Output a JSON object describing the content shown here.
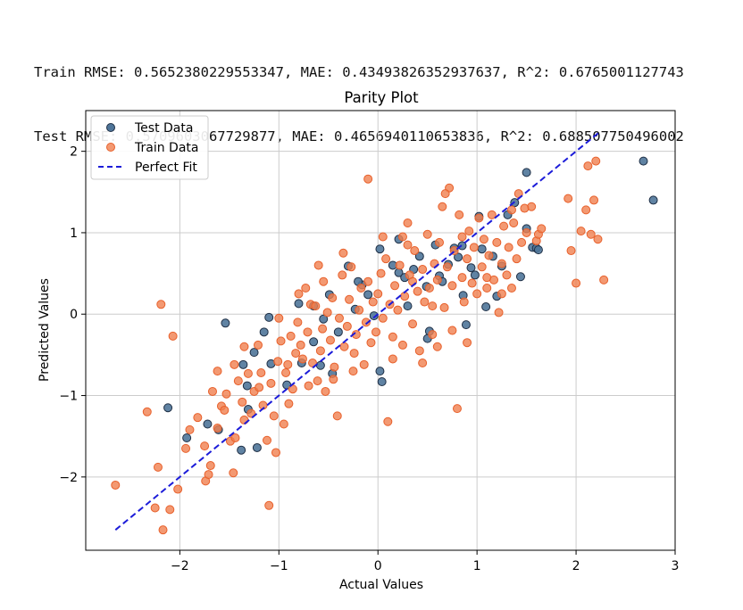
{
  "metrics": {
    "train_line": "Train RMSE: 0.5652380229553347, MAE: 0.43493826352937637, R^2: 0.6765001127743",
    "test_line": "Test RMSE: 0.5709603067729877, MAE: 0.4656940110653836, R^2: 0.688507750496002"
  },
  "colors": {
    "train_fill": "#f07f4f",
    "train_edge": "#e8602b",
    "test_fill": "#4f7599",
    "test_edge": "#1f2f45",
    "perfect_fit": "#1c1cd9",
    "grid": "#cccccc"
  },
  "chart_data": {
    "type": "scatter",
    "title": "Parity Plot",
    "xlabel": "Actual Values",
    "ylabel": "Predicted Values",
    "xlim": [
      -2.95,
      3.0
    ],
    "ylim": [
      -2.9,
      2.5
    ],
    "xticks": [
      -2,
      -1,
      0,
      1,
      2,
      3
    ],
    "yticks": [
      -2,
      -1,
      0,
      1,
      2
    ],
    "xtick_labels": [
      "−2",
      "−1",
      "0",
      "1",
      "2",
      "3"
    ],
    "ytick_labels": [
      "−2",
      "−1",
      "0",
      "1",
      "2"
    ],
    "grid": true,
    "legend_position": "top-left",
    "legend": [
      "Test Data",
      "Train Data",
      "Perfect Fit"
    ],
    "series": [
      {
        "name": "Test Data",
        "kind": "scatter",
        "points": [
          [
            -2.12,
            -1.15
          ],
          [
            -1.93,
            -1.52
          ],
          [
            -1.72,
            -1.35
          ],
          [
            -1.61,
            -1.42
          ],
          [
            -1.38,
            -1.67
          ],
          [
            -1.22,
            -1.64
          ],
          [
            -1.32,
            -0.88
          ],
          [
            -1.36,
            -0.62
          ],
          [
            -1.15,
            -0.22
          ],
          [
            -1.1,
            -0.04
          ],
          [
            -1.54,
            -0.11
          ],
          [
            -1.31,
            -1.17
          ],
          [
            -1.25,
            -0.47
          ],
          [
            -1.08,
            -0.61
          ],
          [
            -0.92,
            -0.87
          ],
          [
            -0.8,
            0.13
          ],
          [
            -0.77,
            -0.6
          ],
          [
            -0.65,
            -0.34
          ],
          [
            -0.58,
            -0.63
          ],
          [
            -0.55,
            -0.06
          ],
          [
            -0.49,
            0.24
          ],
          [
            -0.46,
            -0.73
          ],
          [
            -0.4,
            -0.22
          ],
          [
            -0.3,
            0.59
          ],
          [
            -0.23,
            0.06
          ],
          [
            -0.16,
            0.36
          ],
          [
            -0.1,
            0.24
          ],
          [
            -0.04,
            -0.02
          ],
          [
            0.02,
            0.8
          ],
          [
            0.04,
            -0.83
          ],
          [
            0.02,
            -0.7
          ],
          [
            0.21,
            0.92
          ],
          [
            0.21,
            0.51
          ],
          [
            0.27,
            0.45
          ],
          [
            0.36,
            0.55
          ],
          [
            0.42,
            0.71
          ],
          [
            0.49,
            0.34
          ],
          [
            0.52,
            -0.21
          ],
          [
            0.58,
            0.85
          ],
          [
            0.62,
            0.47
          ],
          [
            0.71,
            0.61
          ],
          [
            0.77,
            0.81
          ],
          [
            0.81,
            0.7
          ],
          [
            0.85,
            0.84
          ],
          [
            0.86,
            0.23
          ],
          [
            0.89,
            -0.13
          ],
          [
            0.94,
            0.57
          ],
          [
            0.98,
            0.48
          ],
          [
            1.02,
            1.2
          ],
          [
            1.09,
            0.09
          ],
          [
            1.16,
            0.71
          ],
          [
            1.2,
            0.22
          ],
          [
            1.25,
            0.59
          ],
          [
            1.31,
            1.22
          ],
          [
            1.38,
            1.37
          ],
          [
            1.44,
            0.46
          ],
          [
            1.5,
            1.74
          ],
          [
            1.5,
            1.05
          ],
          [
            1.56,
            0.82
          ],
          [
            1.6,
            0.81
          ],
          [
            1.62,
            0.79
          ],
          [
            2.68,
            1.88
          ],
          [
            2.78,
            1.4
          ],
          [
            0.15,
            0.6
          ],
          [
            -0.2,
            0.4
          ],
          [
            0.3,
            0.1
          ],
          [
            0.65,
            0.4
          ],
          [
            1.05,
            0.8
          ],
          [
            -0.65,
            0.1
          ],
          [
            0.5,
            -0.3
          ]
        ]
      },
      {
        "name": "Train Data",
        "kind": "scatter",
        "points": [
          [
            -2.65,
            -2.1
          ],
          [
            -2.33,
            -1.2
          ],
          [
            -2.25,
            -2.38
          ],
          [
            -2.22,
            -1.88
          ],
          [
            -2.17,
            -2.65
          ],
          [
            -2.19,
            0.12
          ],
          [
            -2.1,
            -2.4
          ],
          [
            -2.07,
            -0.27
          ],
          [
            -2.02,
            -2.15
          ],
          [
            -1.94,
            -1.65
          ],
          [
            -1.9,
            -1.42
          ],
          [
            -1.82,
            -1.27
          ],
          [
            -1.75,
            -1.62
          ],
          [
            -1.74,
            -2.05
          ],
          [
            -1.71,
            -1.97
          ],
          [
            -1.69,
            -1.86
          ],
          [
            -1.67,
            -0.95
          ],
          [
            -1.62,
            -0.7
          ],
          [
            -1.58,
            -1.13
          ],
          [
            -1.53,
            -0.98
          ],
          [
            -1.49,
            -1.56
          ],
          [
            -1.46,
            -1.95
          ],
          [
            -1.44,
            -1.52
          ],
          [
            -1.41,
            -0.82
          ],
          [
            -1.37,
            -1.08
          ],
          [
            -1.35,
            -0.4
          ],
          [
            -1.31,
            -0.73
          ],
          [
            -1.28,
            -1.22
          ],
          [
            -1.25,
            -0.95
          ],
          [
            -1.21,
            -0.38
          ],
          [
            -1.18,
            -0.72
          ],
          [
            -1.16,
            -1.12
          ],
          [
            -1.12,
            -1.55
          ],
          [
            -1.1,
            -2.35
          ],
          [
            -1.08,
            -0.85
          ],
          [
            -1.05,
            -1.25
          ],
          [
            -1.03,
            -1.7
          ],
          [
            -1.01,
            -0.58
          ],
          [
            -0.98,
            -0.33
          ],
          [
            -0.95,
            -1.35
          ],
          [
            -0.93,
            -0.72
          ],
          [
            -0.91,
            -0.62
          ],
          [
            -0.88,
            -0.27
          ],
          [
            -0.86,
            -0.92
          ],
          [
            -0.83,
            -0.48
          ],
          [
            -0.81,
            -0.1
          ],
          [
            -0.78,
            -0.38
          ],
          [
            -0.76,
            -0.55
          ],
          [
            -0.73,
            0.32
          ],
          [
            -0.71,
            -0.22
          ],
          [
            -0.68,
            0.12
          ],
          [
            -0.66,
            -0.6
          ],
          [
            -0.63,
            0.1
          ],
          [
            -0.61,
            -0.82
          ],
          [
            -0.58,
            -0.45
          ],
          [
            -0.56,
            -0.18
          ],
          [
            -0.53,
            -0.95
          ],
          [
            -0.51,
            0.02
          ],
          [
            -0.48,
            -0.32
          ],
          [
            -0.46,
            0.2
          ],
          [
            -0.44,
            -0.65
          ],
          [
            -0.41,
            -1.25
          ],
          [
            -0.39,
            -0.05
          ],
          [
            -0.36,
            0.48
          ],
          [
            -0.34,
            -0.4
          ],
          [
            -0.31,
            -0.15
          ],
          [
            -0.29,
            0.18
          ],
          [
            -0.27,
            0.58
          ],
          [
            -0.24,
            -0.48
          ],
          [
            -0.22,
            -0.25
          ],
          [
            -0.19,
            0.05
          ],
          [
            -0.17,
            0.32
          ],
          [
            -0.14,
            -0.62
          ],
          [
            -0.12,
            -0.1
          ],
          [
            -0.1,
            0.4
          ],
          [
            -0.07,
            -0.35
          ],
          [
            -0.05,
            0.15
          ],
          [
            -0.02,
            -0.22
          ],
          [
            0.0,
            0.25
          ],
          [
            0.03,
            0.5
          ],
          [
            0.05,
            -0.05
          ],
          [
            0.08,
            0.68
          ],
          [
            0.1,
            -1.32
          ],
          [
            0.12,
            0.12
          ],
          [
            0.15,
            -0.28
          ],
          [
            0.17,
            0.35
          ],
          [
            0.2,
            0.05
          ],
          [
            0.22,
            0.6
          ],
          [
            0.25,
            -0.38
          ],
          [
            0.27,
            0.22
          ],
          [
            0.3,
            1.12
          ],
          [
            0.32,
            0.48
          ],
          [
            0.35,
            -0.12
          ],
          [
            0.37,
            0.78
          ],
          [
            0.4,
            0.28
          ],
          [
            0.42,
            -0.45
          ],
          [
            0.45,
            0.55
          ],
          [
            0.47,
            0.15
          ],
          [
            0.5,
            0.98
          ],
          [
            0.52,
            0.32
          ],
          [
            0.55,
            -0.25
          ],
          [
            0.57,
            0.62
          ],
          [
            0.6,
            0.42
          ],
          [
            0.62,
            0.88
          ],
          [
            0.65,
            1.32
          ],
          [
            0.67,
            0.08
          ],
          [
            0.7,
            0.58
          ],
          [
            0.72,
            1.55
          ],
          [
            0.75,
            0.35
          ],
          [
            0.77,
            0.78
          ],
          [
            0.8,
            -1.16
          ],
          [
            0.82,
            1.22
          ],
          [
            0.85,
            0.45
          ],
          [
            0.87,
            0.15
          ],
          [
            0.9,
            0.68
          ],
          [
            0.92,
            1.02
          ],
          [
            0.95,
            0.38
          ],
          [
            0.97,
            0.82
          ],
          [
            1.0,
            0.25
          ],
          [
            1.02,
            1.18
          ],
          [
            1.05,
            0.58
          ],
          [
            1.07,
            0.92
          ],
          [
            1.1,
            0.32
          ],
          [
            1.12,
            0.72
          ],
          [
            1.15,
            1.22
          ],
          [
            1.17,
            0.42
          ],
          [
            1.2,
            0.88
          ],
          [
            1.22,
            0.02
          ],
          [
            1.25,
            0.62
          ],
          [
            1.27,
            1.08
          ],
          [
            1.3,
            0.48
          ],
          [
            1.32,
            0.82
          ],
          [
            1.35,
            0.32
          ],
          [
            1.37,
            1.12
          ],
          [
            1.4,
            0.68
          ],
          [
            1.42,
            1.48
          ],
          [
            1.45,
            0.88
          ],
          [
            1.5,
            1.0
          ],
          [
            1.55,
            1.32
          ],
          [
            1.6,
            0.9
          ],
          [
            1.62,
            0.98
          ],
          [
            1.65,
            1.05
          ],
          [
            1.92,
            1.42
          ],
          [
            1.95,
            0.78
          ],
          [
            2.0,
            0.38
          ],
          [
            2.05,
            1.02
          ],
          [
            2.1,
            1.28
          ],
          [
            2.12,
            1.82
          ],
          [
            2.15,
            0.98
          ],
          [
            2.18,
            1.4
          ],
          [
            2.2,
            1.88
          ],
          [
            2.22,
            0.92
          ],
          [
            2.28,
            0.42
          ],
          [
            -0.1,
            1.66
          ],
          [
            -1.45,
            -0.62
          ],
          [
            -1.62,
            -1.4
          ],
          [
            -0.9,
            -1.1
          ],
          [
            -0.8,
            0.25
          ],
          [
            -0.6,
            0.6
          ],
          [
            -0.35,
            0.75
          ],
          [
            0.05,
            0.95
          ],
          [
            0.3,
            0.85
          ],
          [
            0.45,
            -0.6
          ],
          [
            0.6,
            -0.4
          ],
          [
            0.75,
            -0.2
          ],
          [
            0.9,
            -0.35
          ],
          [
            1.1,
            0.45
          ],
          [
            1.25,
            0.25
          ],
          [
            -1.0,
            -0.05
          ],
          [
            -1.2,
            -0.9
          ],
          [
            -0.45,
            -0.8
          ],
          [
            0.15,
            -0.55
          ],
          [
            0.35,
            0.4
          ],
          [
            0.55,
            0.1
          ],
          [
            0.68,
            1.48
          ],
          [
            -0.7,
            -0.88
          ],
          [
            -1.55,
            -1.18
          ],
          [
            -1.35,
            -1.3
          ],
          [
            -0.25,
            -0.7
          ],
          [
            0.25,
            0.95
          ],
          [
            0.85,
            0.95
          ],
          [
            1.35,
            1.28
          ],
          [
            1.48,
            1.3
          ],
          [
            -0.55,
            0.4
          ]
        ]
      },
      {
        "name": "Perfect Fit",
        "kind": "line",
        "style": "dashed",
        "x": [
          -2.65,
          2.25
        ],
        "y": [
          -2.65,
          2.25
        ]
      }
    ]
  }
}
